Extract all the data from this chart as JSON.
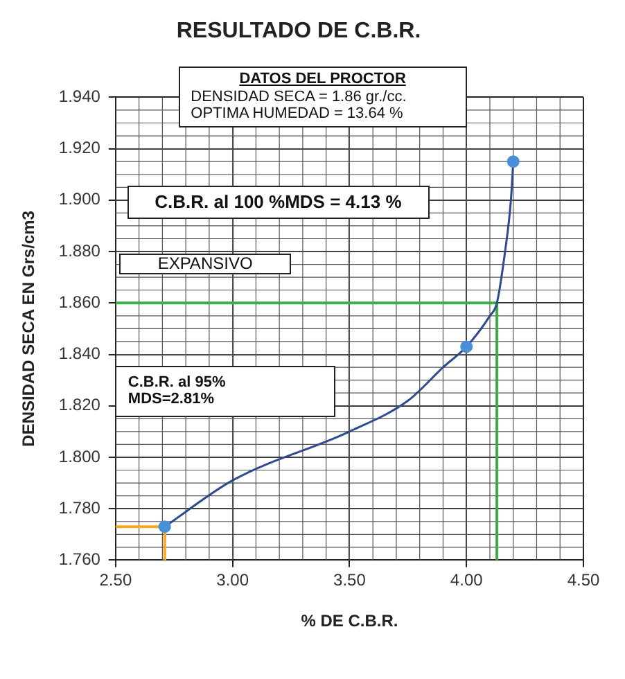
{
  "chart_data": {
    "type": "line",
    "title": "RESULTADO DE C.B.R.",
    "xlabel": "% DE C.B.R.",
    "ylabel": "DENSIDAD SECA EN Grs/cm3",
    "series": [
      {
        "type": "line",
        "color": "#2f4a8f",
        "marker": "none",
        "x": [
          2.71,
          3.0,
          3.5,
          3.75,
          3.9,
          4.0,
          4.1,
          4.13,
          4.165,
          4.19,
          4.2
        ],
        "values": [
          1.773,
          1.791,
          1.81,
          1.822,
          1.835,
          1.843,
          1.855,
          1.86,
          1.88,
          1.9,
          1.915
        ]
      },
      {
        "type": "line",
        "color": "#3cb043",
        "marker": "none",
        "x": [
          2.5,
          4.13,
          4.13
        ],
        "values": [
          1.86,
          1.86,
          1.76
        ]
      },
      {
        "type": "line",
        "color": "#f5a623",
        "marker": "none",
        "x": [
          2.5,
          2.71,
          2.71
        ],
        "values": [
          1.773,
          1.773,
          1.76
        ]
      },
      {
        "type": "scatter",
        "color": "#4a90d9",
        "marker": "circle",
        "x": [
          2.71,
          4.0,
          4.2
        ],
        "values": [
          1.773,
          1.843,
          1.915
        ]
      }
    ],
    "xlim": [
      2.5,
      4.5
    ],
    "ylim": [
      1.76,
      1.94
    ],
    "xticks": [
      {
        "value": 2.5,
        "label": "2.50"
      },
      {
        "value": 3,
        "label": "3.00"
      },
      {
        "value": 3.5,
        "label": "3.50"
      },
      {
        "value": 4,
        "label": "4.00"
      },
      {
        "value": 4.5,
        "label": "4.50"
      }
    ],
    "yticks": [
      {
        "value": 1.76,
        "label": "1.760"
      },
      {
        "value": 1.78,
        "label": "1.780"
      },
      {
        "value": 1.8,
        "label": "1.800"
      },
      {
        "value": 1.82,
        "label": "1.820"
      },
      {
        "value": 1.84,
        "label": "1.840"
      },
      {
        "value": 1.86,
        "label": "1.860"
      },
      {
        "value": 1.88,
        "label": "1.880"
      },
      {
        "value": 1.9,
        "label": "1.900"
      },
      {
        "value": 1.92,
        "label": "1.920"
      },
      {
        "value": 1.94,
        "label": "1.940"
      }
    ],
    "annotations": [
      "DATOS DEL PROCTOR",
      "DENSIDAD SECA = 1.86 gr./cc.",
      "OPTIMA HUMEDAD = 13.64 %",
      "C.B.R. al  100 %MDS = 4.13 %",
      "EXPANSIVO",
      "C.B.R. al 95%",
      "MDS=2.81%"
    ],
    "grid": true,
    "legend": false
  }
}
